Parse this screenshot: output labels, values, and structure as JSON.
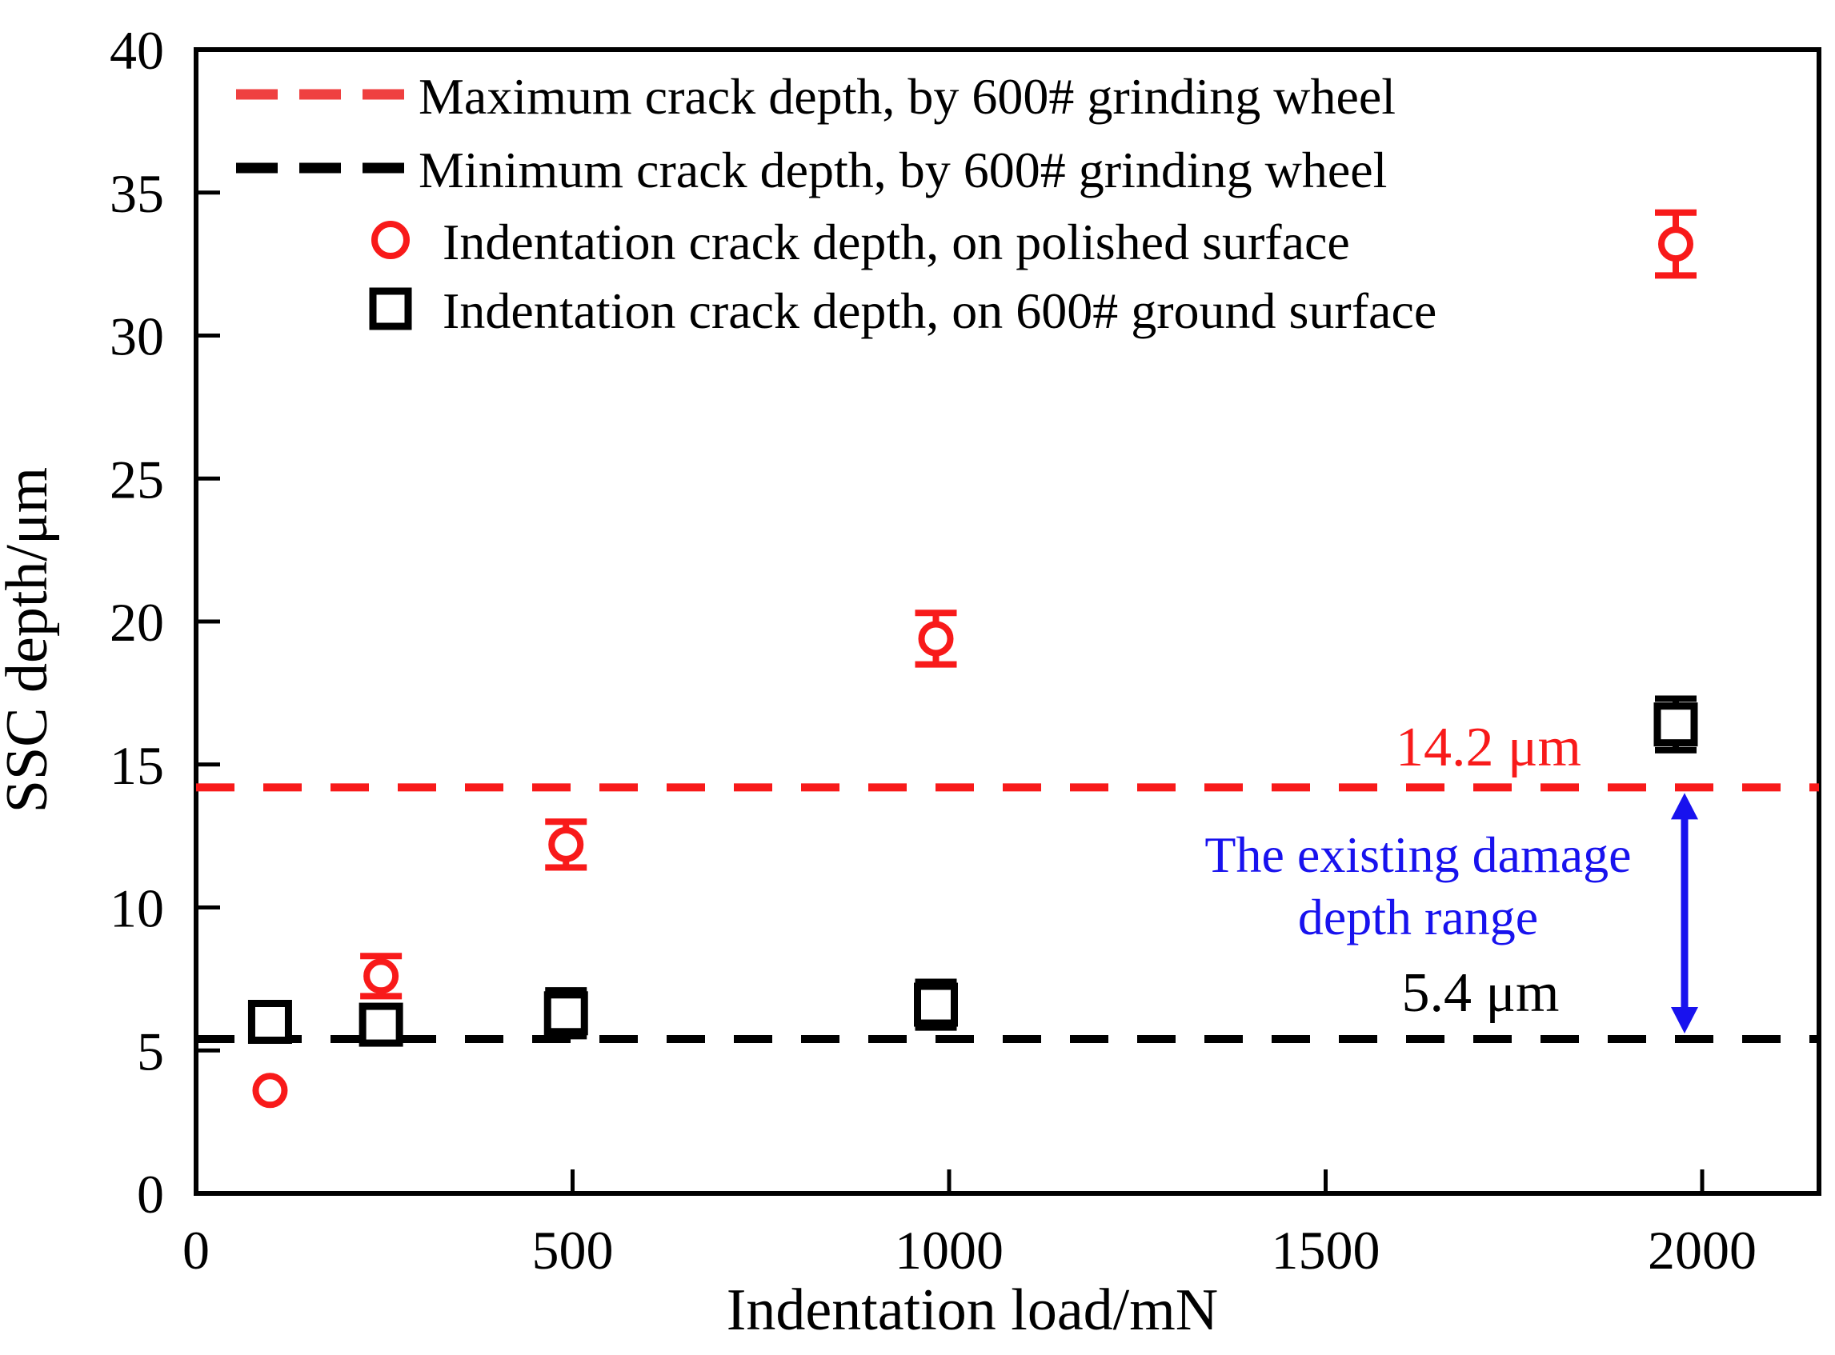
{
  "figure": {
    "background": "#ffffff",
    "accent_red": "#f81a1a",
    "accent_blue": "#1812ee",
    "legend_red_swatch": "#ef4040",
    "axis_color": "#000000"
  },
  "chart_data": {
    "type": "scatter",
    "title": "",
    "xlabel": "Indentation load/mN",
    "ylabel": "SSC depth/μm",
    "xlim": [
      0,
      2155
    ],
    "ylim": [
      0,
      40
    ],
    "x_ticks": [
      0,
      500,
      1000,
      1500,
      2000
    ],
    "y_ticks": [
      0,
      5,
      10,
      15,
      20,
      25,
      30,
      35,
      40
    ],
    "grid": false,
    "legend_position": "top-left-inside",
    "series": [
      {
        "name": "Indentation crack depth, on polished surface",
        "marker": "circle",
        "color": "#f81a1a",
        "x": [
          100,
          250,
          500,
          1000,
          2000
        ],
        "y": [
          3.6,
          7.6,
          12.2,
          19.4,
          33.2
        ],
        "yerr": [
          0,
          0.7,
          0.8,
          0.9,
          1.1
        ]
      },
      {
        "name": "Indentation crack depth, on 600# ground surface",
        "marker": "square",
        "color": "#000000",
        "x": [
          100,
          250,
          500,
          1000,
          2000
        ],
        "y": [
          6.0,
          5.9,
          6.3,
          6.6,
          16.4
        ],
        "yerr": [
          0.6,
          0.4,
          0.8,
          0.8,
          0.9
        ]
      }
    ],
    "reference_lines": [
      {
        "label": "Maximum crack depth, by 600# grinding wheel",
        "value": 14.2,
        "style": "dashed",
        "color": "#f81a1a"
      },
      {
        "label": "Minimum  crack depth, by 600# grinding wheel",
        "value": 5.4,
        "style": "dashed",
        "color": "#000000"
      }
    ],
    "legend": [
      {
        "label": "Maximum crack depth, by 600# grinding wheel",
        "swatch": "dashed-line",
        "color": "#ef4040"
      },
      {
        "label": "Minimum  crack depth, by 600# grinding wheel",
        "swatch": "dashed-line",
        "color": "#000000"
      },
      {
        "label": "Indentation crack depth, on polished surface",
        "swatch": "open-circle",
        "color": "#f81a1a"
      },
      {
        "label": "Indentation crack depth, on 600# ground surface",
        "swatch": "open-square",
        "color": "#000000"
      }
    ],
    "annotations": {
      "max_line_label": "14.2 μm",
      "min_line_label": "5.4 μm",
      "range_label_line1": "The existing damage",
      "range_label_line2": "depth range"
    }
  }
}
